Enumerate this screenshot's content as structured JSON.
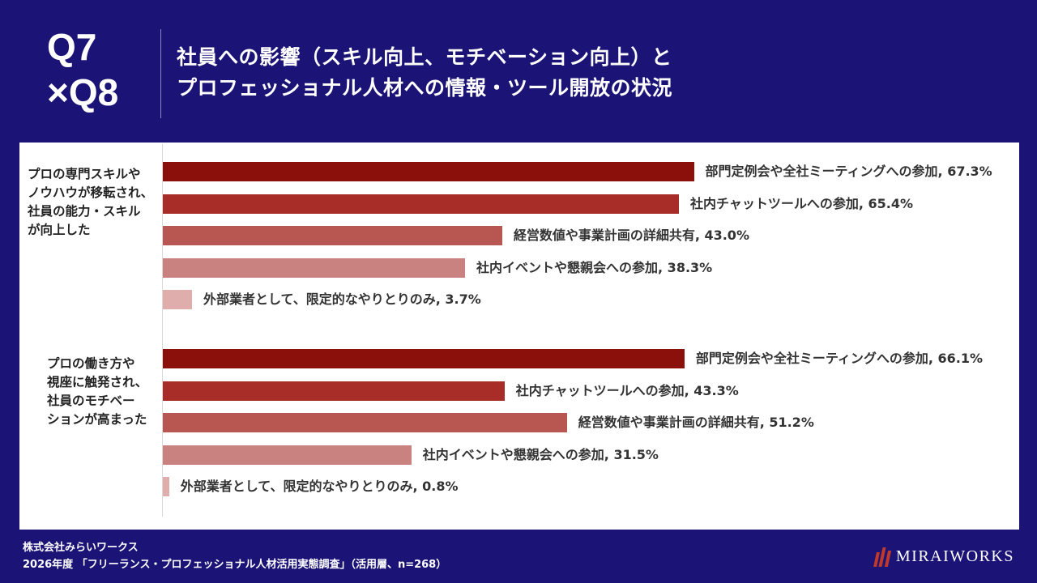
{
  "header": {
    "q_label_line1": "Q7",
    "q_label_line2": "×Q8",
    "title_line1": "社員への影響（スキル向上、モチベーション向上）と",
    "title_line2": "プロフェッショナル人材への情報・ツール開放の状況"
  },
  "chart_data": {
    "type": "bar",
    "orientation": "horizontal",
    "xlim": [
      0,
      100
    ],
    "groups": [
      {
        "label_lines": [
          "プロの専門スキルや",
          "ノウハウが移転され、",
          "社員の能力・スキル",
          "が向上した"
        ],
        "bars": [
          {
            "label": "部門定例会や全社ミーティングへの参加, 67.3%",
            "value": 67.3
          },
          {
            "label": "社内チャットツールへの参加, 65.4%",
            "value": 65.4
          },
          {
            "label": "経営数値や事業計画の詳細共有, 43.0%",
            "value": 43.0
          },
          {
            "label": "社内イベントや懇親会への参加, 38.3%",
            "value": 38.3
          },
          {
            "label": "外部業者として、限定的なやりとりのみ, 3.7%",
            "value": 3.7
          }
        ]
      },
      {
        "label_lines": [
          "プロの働き方や",
          "視座に触発され、",
          "社員のモチベー",
          "ションが高まった"
        ],
        "bars": [
          {
            "label": "部門定例会や全社ミーティングへの参加, 66.1%",
            "value": 66.1
          },
          {
            "label": "社内チャットツールへの参加, 43.3%",
            "value": 43.3
          },
          {
            "label": "経営数値や事業計画の詳細共有, 51.2%",
            "value": 51.2
          },
          {
            "label": "社内イベントや懇親会への参加, 31.5%",
            "value": 31.5
          },
          {
            "label": "外部業者として、限定的なやりとりのみ, 0.8%",
            "value": 0.8
          }
        ]
      }
    ],
    "colors": [
      "#8b0f0a",
      "#a82c28",
      "#b85652",
      "#c98280",
      "#dfaeac"
    ]
  },
  "footer": {
    "company": "株式会社みらいワークス",
    "source": "2026年度 「フリーランス・プロフェッショナル人材活用実態調査」（活用層、n=268）"
  },
  "logo": {
    "text": "MIRAIWORKS"
  }
}
